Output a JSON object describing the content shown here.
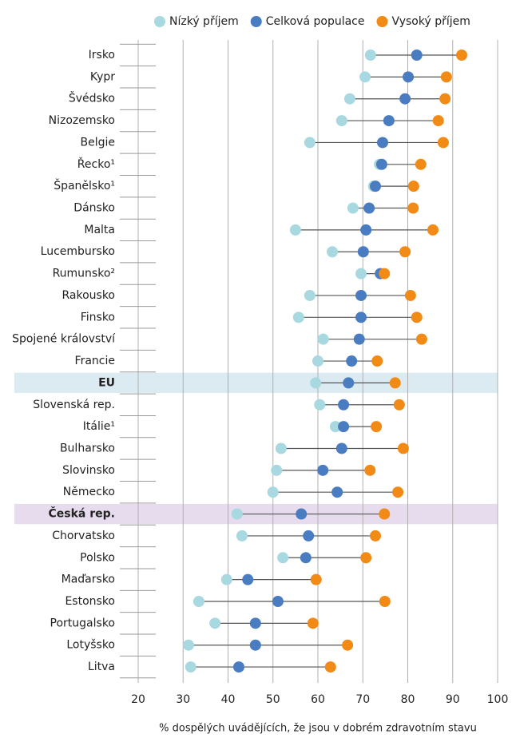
{
  "chart_data": {
    "type": "dumbbell",
    "categories": [
      "Irsko",
      "Kypr",
      "Švédsko",
      "Nizozemsko",
      "Belgie",
      "Řecko¹",
      "Španělsko¹",
      "Dánsko",
      "Malta",
      "Lucembursko",
      "Rumunsko²",
      "Rakousko",
      "Finsko",
      "Spojené království",
      "Francie",
      "EU",
      "Slovenská rep.",
      "Itálie¹",
      "Bulharsko",
      "Slovinsko",
      "Německo",
      "Česká rep.",
      "Chorvatsko",
      "Polsko",
      "Maďarsko",
      "Estonsko",
      "Portugalsko",
      "Lotyšsko",
      "Litva"
    ],
    "series": [
      {
        "name": "Nízký příjem",
        "color": "#a8d8e0",
        "values": [
          71.7,
          70.5,
          67.1,
          65.3,
          58.2,
          73.7,
          72.4,
          67.8,
          55.0,
          63.2,
          69.6,
          58.2,
          55.7,
          61.2,
          60.0,
          59.5,
          60.4,
          63.9,
          51.8,
          50.8,
          50.0,
          42.0,
          43.1,
          52.2,
          39.7,
          33.5,
          37.1,
          31.2,
          31.7
        ]
      },
      {
        "name": "Celková populace",
        "color": "#4a7cc2",
        "values": [
          82.0,
          80.1,
          79.4,
          75.8,
          74.4,
          74.2,
          72.8,
          71.4,
          70.7,
          70.1,
          73.9,
          69.6,
          69.6,
          69.2,
          67.5,
          66.8,
          65.7,
          65.7,
          65.3,
          61.1,
          64.3,
          56.3,
          57.9,
          57.3,
          44.4,
          51.1,
          46.1,
          46.1,
          42.4
        ]
      },
      {
        "name": "Vysoký příjem",
        "color": "#f28a16",
        "values": [
          92.0,
          88.6,
          88.3,
          86.8,
          87.9,
          82.9,
          81.3,
          81.2,
          85.6,
          79.4,
          74.8,
          80.6,
          82.0,
          83.1,
          73.2,
          77.2,
          78.1,
          73.0,
          79.0,
          71.6,
          77.8,
          74.8,
          72.8,
          70.7,
          59.6,
          74.9,
          58.9,
          66.6,
          62.8
        ]
      }
    ],
    "highlights": [
      {
        "category": "EU",
        "color": "#dcebf1"
      },
      {
        "category": "Česká rep.",
        "color": "#e6dcee"
      }
    ],
    "xlabel": "% dospělých uvádějících, že jsou v dobrém zdravotním stavu",
    "xlim": [
      20,
      100
    ],
    "xticks": [
      20,
      30,
      40,
      50,
      60,
      70,
      80,
      90,
      100
    ],
    "grid": true
  }
}
